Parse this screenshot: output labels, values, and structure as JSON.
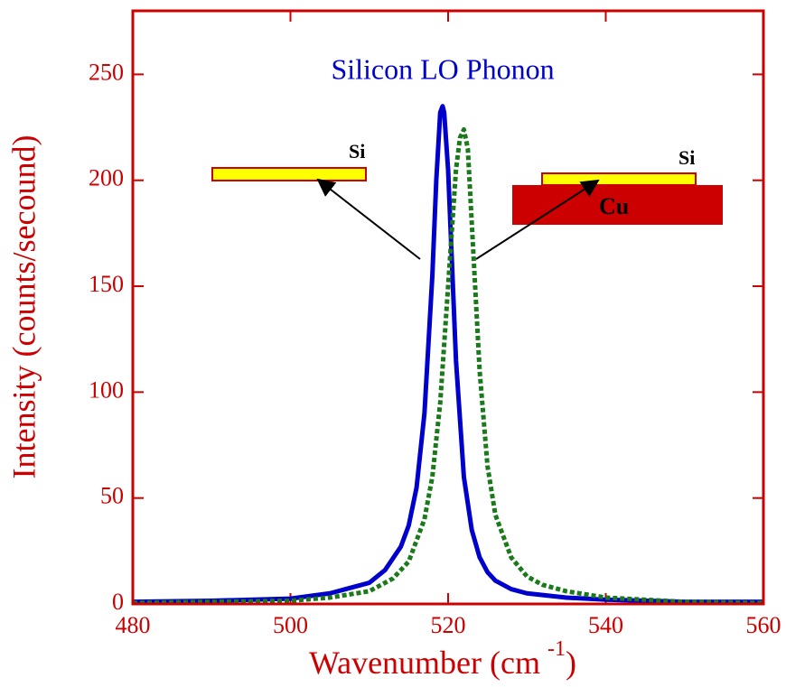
{
  "chart_data": {
    "type": "line",
    "title": "Silicon LO Phonon",
    "ylabel": "Intensity (counts/secound)",
    "xlabel_parts": [
      "Wavenumber (cm",
      "-1",
      ")"
    ],
    "annotations": [
      "Si",
      "Si",
      "Cu"
    ],
    "xlim": [
      480,
      560
    ],
    "xticks": [
      480,
      500,
      520,
      540,
      560
    ],
    "ylim": [
      0,
      280
    ],
    "yticks": [
      0,
      50,
      100,
      150,
      200,
      250
    ],
    "axis_color": "#cc0000",
    "title_color": "#0000cc",
    "series": [
      {
        "color": "#0000cc",
        "style": "solid",
        "x": [
          480,
          490,
          500,
          505,
          510,
          512,
          514,
          515,
          516,
          517,
          518,
          518.5,
          519,
          519.3,
          519.5,
          520,
          520.5,
          521,
          522,
          523,
          524,
          525,
          526,
          528,
          530,
          535,
          540,
          550,
          560
        ],
        "values": [
          1,
          1.5,
          2.5,
          5,
          10,
          16,
          27,
          37,
          55,
          90,
          155,
          200,
          232,
          235,
          232,
          205,
          160,
          115,
          60,
          35,
          22,
          15,
          11,
          7,
          5,
          3,
          2,
          1,
          1
        ]
      },
      {
        "color": "#1a7a1a",
        "style": "dotted",
        "x": [
          480,
          490,
          500,
          505,
          510,
          513,
          515,
          517,
          518,
          519,
          520,
          521,
          521.5,
          522,
          522.5,
          523,
          524,
          525,
          526,
          528,
          530,
          532,
          535,
          540,
          550,
          560
        ],
        "values": [
          0.5,
          1,
          1.5,
          3,
          6,
          12,
          20,
          40,
          60,
          95,
          150,
          205,
          220,
          224,
          215,
          180,
          110,
          65,
          42,
          22,
          13,
          9,
          6,
          3,
          1,
          0.5
        ]
      }
    ]
  }
}
